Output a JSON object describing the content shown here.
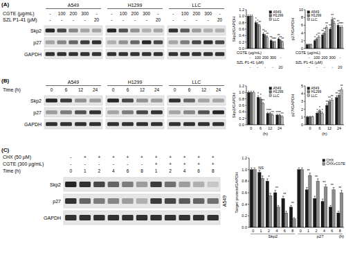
{
  "panel_labels": [
    "(A)",
    "(B)",
    "(C)"
  ],
  "blots": [
    {
      "groups": [
        "A549",
        "H1299",
        "LLC"
      ],
      "header_rows": [
        {
          "label": "CGTE (µg/mL)",
          "values": [
            "-",
            "100",
            "200",
            "300",
            "-"
          ]
        },
        {
          "label": "SZL P1-41 (µM)",
          "values": [
            "-",
            "-",
            "-",
            "-",
            "20"
          ]
        }
      ],
      "proteins": [
        "Skp2",
        "p27",
        "GAPDH"
      ],
      "intensity": [
        [
          [
            0.9,
            0.75,
            0.45,
            0.3,
            0.3
          ],
          [
            0.3,
            0.45,
            0.6,
            0.8,
            0.85
          ],
          [
            0.85,
            0.85,
            0.85,
            0.85,
            0.85
          ]
        ],
        [
          [
            0.9,
            0.7,
            0.4,
            0.25,
            0.3
          ],
          [
            0.25,
            0.4,
            0.6,
            0.9,
            0.75
          ],
          [
            0.85,
            0.85,
            0.85,
            0.85,
            0.85
          ]
        ],
        [
          [
            0.85,
            0.65,
            0.35,
            0.25,
            0.25
          ],
          [
            0.3,
            0.5,
            0.75,
            0.85,
            0.75
          ],
          [
            0.85,
            0.85,
            0.85,
            0.85,
            0.85
          ]
        ]
      ]
    },
    {
      "groups": [
        "A549",
        "H1299",
        "LLC"
      ],
      "header_rows": [
        {
          "label": "Time (h)",
          "values": [
            "0",
            "6",
            "12",
            "24"
          ]
        }
      ],
      "proteins": [
        "Skp2",
        "p27",
        "GAPDH"
      ],
      "intensity": [
        [
          [
            0.9,
            0.8,
            0.4,
            0.35
          ],
          [
            0.35,
            0.5,
            0.7,
            0.85
          ],
          [
            0.85,
            0.85,
            0.85,
            0.85
          ]
        ],
        [
          [
            0.9,
            0.75,
            0.4,
            0.35
          ],
          [
            0.3,
            0.5,
            0.75,
            0.85
          ],
          [
            0.85,
            0.85,
            0.85,
            0.85
          ]
        ],
        [
          [
            0.85,
            0.6,
            0.3,
            0.3
          ],
          [
            0.3,
            0.45,
            0.7,
            0.9
          ],
          [
            0.85,
            0.85,
            0.85,
            0.85
          ]
        ]
      ]
    },
    {
      "groups": [
        "A549"
      ],
      "header_rows": [
        {
          "label": "CHX (50 µM)",
          "values": [
            "-",
            "+",
            "+",
            "+",
            "+",
            "+",
            "+",
            "+",
            "+",
            "+",
            "+"
          ]
        },
        {
          "label": "CGTE (300 µg/mL)",
          "values": [
            "-",
            "-",
            "-",
            "-",
            "-",
            "-",
            "+",
            "+",
            "+",
            "+",
            "+"
          ]
        },
        {
          "label": "Time (h)",
          "values": [
            "0",
            "1",
            "2",
            "4",
            "6",
            "8",
            "1",
            "2",
            "4",
            "6",
            "8"
          ]
        }
      ],
      "proteins": [
        "Skp2",
        "p27",
        "GAPDH"
      ],
      "intensity": [
        [
          [
            0.9,
            0.85,
            0.75,
            0.6,
            0.5,
            0.35,
            0.8,
            0.55,
            0.35,
            0.25,
            0.15
          ],
          [
            0.85,
            0.6,
            0.5,
            0.45,
            0.35,
            0.25,
            0.8,
            0.75,
            0.65,
            0.6,
            0.55
          ],
          [
            0.85,
            0.85,
            0.85,
            0.85,
            0.85,
            0.85,
            0.85,
            0.85,
            0.85,
            0.85,
            0.85
          ]
        ]
      ]
    }
  ],
  "chart_data": [
    {
      "type": "bar",
      "ylabel": "Skp2/GAPDH",
      "x_rows": [
        {
          "label": "CGTE (µg/mL)",
          "values": [
            "-",
            "100",
            "200",
            "300",
            "-"
          ]
        },
        {
          "label": "SZL P1-41 (µM)",
          "values": [
            "-",
            "-",
            "-",
            "-",
            "20"
          ]
        }
      ],
      "series": [
        {
          "name": "A549",
          "color": "#1a1a1a",
          "values": [
            1.0,
            0.8,
            0.45,
            0.25,
            0.3
          ],
          "errors": [
            0.04,
            0.05,
            0.04,
            0.03,
            0.04
          ],
          "sig": [
            null,
            "*",
            "**",
            "**",
            "**"
          ]
        },
        {
          "name": "H1299",
          "color": "#6e6e6e",
          "values": [
            1.0,
            0.75,
            0.4,
            0.2,
            0.25
          ],
          "errors": [
            0.04,
            0.05,
            0.04,
            0.03,
            0.03
          ],
          "sig": [
            null,
            "*",
            "**",
            "**",
            "**"
          ]
        },
        {
          "name": "LLC",
          "color": "#b4b4b4",
          "values": [
            1.0,
            0.7,
            0.35,
            0.2,
            0.2
          ],
          "errors": [
            0.04,
            0.04,
            0.04,
            0.03,
            0.03
          ],
          "sig": [
            null,
            "**",
            "**",
            "**",
            "**"
          ]
        }
      ],
      "ylim": [
        0,
        1.2
      ],
      "yticks": [
        {
          "value": 0,
          "label": "0.0"
        },
        {
          "value": 0.2,
          "label": "0.2"
        },
        {
          "value": 0.4,
          "label": "0.4"
        },
        {
          "value": 0.6,
          "label": "0.6"
        },
        {
          "value": 0.8,
          "label": "0.8"
        },
        {
          "value": 1.0,
          "label": "1.0"
        },
        {
          "value": 1.2,
          "label": "1.2"
        }
      ],
      "legend": "upper right"
    },
    {
      "type": "bar",
      "ylabel": "p27/GAPDH",
      "x_rows": [
        {
          "label": "CGTE (µg/mL)",
          "values": [
            "-",
            "100",
            "200",
            "300",
            "-"
          ]
        },
        {
          "label": "SZL P1-41 (µM)",
          "values": [
            "-",
            "-",
            "-",
            "-",
            "20"
          ]
        }
      ],
      "series": [
        {
          "name": "A549",
          "color": "#1a1a1a",
          "values": [
            1,
            2,
            3.5,
            5,
            6
          ],
          "errors": [
            0.2,
            0.3,
            0.4,
            0.4,
            0.5
          ],
          "sig": [
            null,
            "*",
            "**",
            "**",
            "**"
          ]
        },
        {
          "name": "H1299",
          "color": "#6e6e6e",
          "values": [
            1,
            2.5,
            4,
            7.5,
            5.5
          ],
          "errors": [
            0.2,
            0.3,
            0.4,
            0.5,
            0.4
          ],
          "sig": [
            null,
            "*",
            "**",
            "**",
            "**"
          ]
        },
        {
          "name": "LLC",
          "color": "#b4b4b4",
          "values": [
            1,
            3,
            5.5,
            6.5,
            5.5
          ],
          "errors": [
            0.2,
            0.3,
            0.4,
            0.5,
            0.4
          ],
          "sig": [
            null,
            "**",
            "**",
            "**",
            "**"
          ]
        }
      ],
      "ylim": [
        0,
        10
      ],
      "yticks": [
        0,
        2,
        4,
        6,
        8,
        10
      ],
      "legend": "upper left"
    },
    {
      "type": "bar",
      "ylabel": "Skp2/GAPDH",
      "xlabel": "(h)",
      "categories": [
        "0",
        "6",
        "12",
        "24"
      ],
      "series": [
        {
          "name": "A549",
          "color": "#1a1a1a",
          "values": [
            1.0,
            0.85,
            0.35,
            0.3
          ],
          "errors": [
            0.04,
            0.05,
            0.04,
            0.03
          ],
          "sig": [
            null,
            "*",
            "**",
            "**"
          ]
        },
        {
          "name": "H1299",
          "color": "#6e6e6e",
          "values": [
            1.0,
            0.8,
            0.35,
            0.3
          ],
          "errors": [
            0.04,
            0.05,
            0.04,
            0.03
          ],
          "sig": [
            null,
            "*",
            "**",
            "**"
          ]
        },
        {
          "name": "LLC",
          "color": "#b4b4b4",
          "values": [
            1.0,
            0.65,
            0.3,
            0.25
          ],
          "errors": [
            0.04,
            0.04,
            0.03,
            0.03
          ],
          "sig": [
            null,
            "**",
            "**",
            "**"
          ]
        }
      ],
      "ylim": [
        0,
        1.2
      ],
      "yticks": [
        {
          "value": 0,
          "label": "0.0"
        },
        {
          "value": 0.2,
          "label": "0.2"
        },
        {
          "value": 0.4,
          "label": "0.4"
        },
        {
          "value": 0.6,
          "label": "0.6"
        },
        {
          "value": 0.8,
          "label": "0.8"
        },
        {
          "value": 1.0,
          "label": "1.0"
        },
        {
          "value": 1.2,
          "label": "1.2"
        }
      ],
      "legend": "upper right"
    },
    {
      "type": "bar",
      "ylabel": "p27/GAPDH",
      "xlabel": "(h)",
      "categories": [
        "0",
        "6",
        "12",
        "24"
      ],
      "series": [
        {
          "name": "A549",
          "color": "#1a1a1a",
          "values": [
            1,
            1.5,
            2.5,
            3.5
          ],
          "errors": [
            0.1,
            0.15,
            0.2,
            0.25
          ],
          "sig": [
            null,
            "*",
            "**",
            "**"
          ]
        },
        {
          "name": "H1299",
          "color": "#6e6e6e",
          "values": [
            1,
            1.8,
            3,
            3.8
          ],
          "errors": [
            0.1,
            0.15,
            0.2,
            0.25
          ],
          "sig": [
            null,
            "*",
            "**",
            "**"
          ]
        },
        {
          "name": "LLC",
          "color": "#b4b4b4",
          "values": [
            1,
            1.5,
            3.2,
            4.5
          ],
          "errors": [
            0.1,
            0.15,
            0.2,
            0.25
          ],
          "sig": [
            null,
            "*",
            "**",
            "**"
          ]
        }
      ],
      "ylim": [
        0,
        5
      ],
      "yticks": [
        0,
        1,
        2,
        3,
        4,
        5
      ],
      "legend": "upper left"
    },
    {
      "type": "bar",
      "ylabel": "Target protein/GAPDH",
      "xlabel": "(h)",
      "categories": [
        "0",
        "1",
        "2",
        "4",
        "6",
        "8",
        "0",
        "1",
        "2",
        "4",
        "6",
        "8"
      ],
      "groups": [
        {
          "label": "Skp2",
          "count": 6
        },
        {
          "label": "p27",
          "count": 6
        }
      ],
      "series": [
        {
          "name": "CHX",
          "color": "#1a1a1a",
          "values": [
            1.0,
            0.95,
            0.8,
            0.6,
            0.5,
            0.35,
            1.0,
            0.65,
            0.5,
            0.45,
            0.35,
            0.25
          ],
          "errors": [
            0.03,
            0.04,
            0.04,
            0.04,
            0.04,
            0.03,
            0.03,
            0.04,
            0.04,
            0.04,
            0.03,
            0.03
          ]
        },
        {
          "name": "CHX+CGTE",
          "color": "#8c8c8c",
          "values": [
            1.0,
            0.85,
            0.55,
            0.35,
            0.25,
            0.15,
            1.0,
            0.9,
            0.8,
            0.7,
            0.65,
            0.6
          ],
          "errors": [
            0.03,
            0.04,
            0.04,
            0.03,
            0.03,
            0.02,
            0.03,
            0.04,
            0.04,
            0.04,
            0.04,
            0.04
          ]
        }
      ],
      "sig": [
        null,
        "NS",
        "*",
        "**",
        "**",
        "**",
        null,
        "**",
        "**",
        "**",
        "**",
        "**"
      ],
      "ylim": [
        0,
        1.2
      ],
      "yticks": [
        {
          "value": 0,
          "label": "0.0"
        },
        {
          "value": 0.2,
          "label": "0.2"
        },
        {
          "value": 0.4,
          "label": "0.4"
        },
        {
          "value": 0.6,
          "label": "0.6"
        },
        {
          "value": 0.8,
          "label": "0.8"
        },
        {
          "value": 1.0,
          "label": "1.0"
        },
        {
          "value": 1.2,
          "label": "1.2"
        }
      ],
      "legend": "upper right"
    }
  ]
}
